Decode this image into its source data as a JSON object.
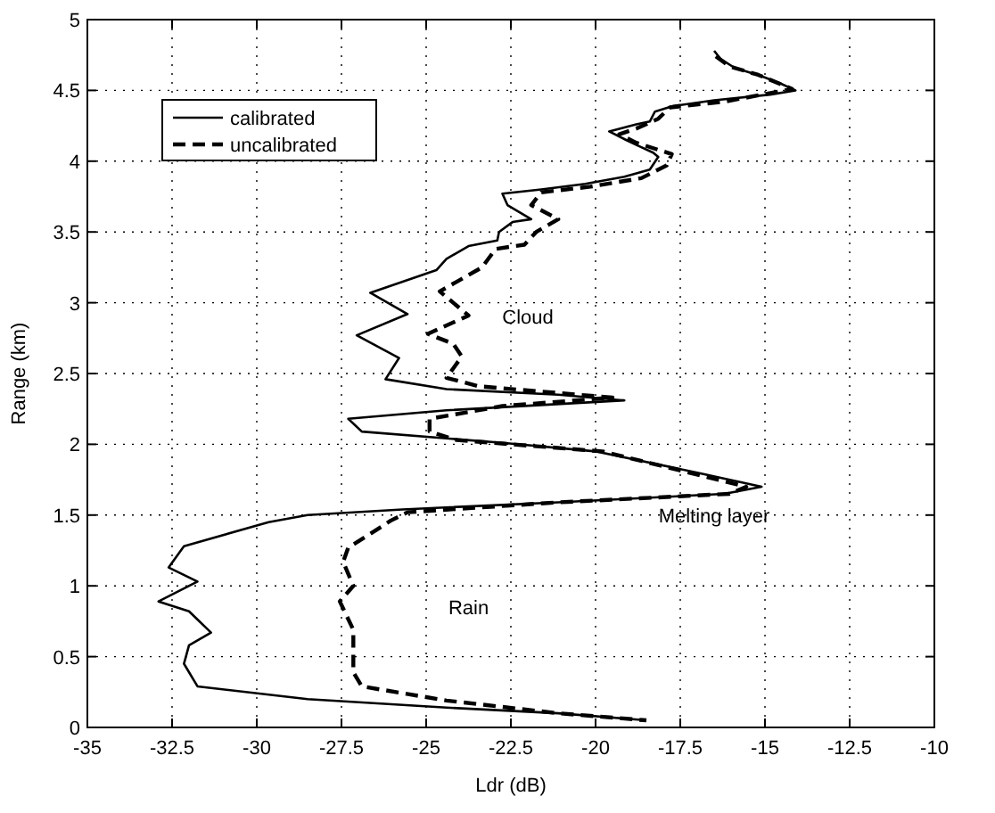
{
  "chart_data": {
    "type": "line",
    "xlabel": "Ldr (dB)",
    "ylabel": "Range (km)",
    "xlim": [
      -35,
      -10
    ],
    "xticks": [
      -35,
      -32.5,
      -30,
      -27.5,
      -25,
      -22.5,
      -20,
      -17.5,
      -15,
      -12.5,
      -10
    ],
    "ylim": [
      0,
      5
    ],
    "yticks": [
      0,
      0.5,
      1,
      1.5,
      2,
      2.5,
      3,
      3.5,
      4,
      4.5,
      5
    ],
    "grid": true,
    "legend": "top left",
    "marker": "none",
    "series": [
      {
        "name": "calibrated",
        "color": "#000000",
        "line_style": "solid",
        "x": [
          -16.5,
          -16.3,
          -15.9,
          -15.1,
          -14.55,
          -14.1,
          -14.85,
          -16.5,
          -17.7,
          -18.25,
          -18.4,
          -18.8,
          -19.6,
          -19.1,
          -18.75,
          -18.3,
          -18.15,
          -18.4,
          -19.15,
          -20.3,
          -21.6,
          -22.75,
          -22.6,
          -21.9,
          -22.45,
          -22.85,
          -22.9,
          -23.75,
          -24.4,
          -24.7,
          -26.65,
          -25.55,
          -27.05,
          -25.8,
          -26.2,
          -24.4,
          -21.1,
          -19.15,
          -24.4,
          -27.3,
          -26.9,
          -22.75,
          -20,
          -17,
          -15.1,
          -16.2,
          -21.1,
          -25.7,
          -28.5,
          -29.65,
          -32.15,
          -32.6,
          -31.75,
          -32.9,
          -32,
          -31.35,
          -32,
          -32.15,
          -31.75,
          -28.5,
          -24.4,
          -21.1,
          -18.5
        ],
        "values": [
          4.78,
          4.72,
          4.66,
          4.6,
          4.55,
          4.5,
          4.47,
          4.43,
          4.39,
          4.35,
          4.28,
          4.26,
          4.21,
          4.15,
          4.11,
          4.06,
          4.03,
          3.94,
          3.89,
          3.84,
          3.8,
          3.77,
          3.69,
          3.59,
          3.57,
          3.5,
          3.44,
          3.4,
          3.31,
          3.23,
          3.07,
          2.92,
          2.77,
          2.61,
          2.46,
          2.39,
          2.35,
          2.31,
          2.24,
          2.18,
          2.09,
          2.01,
          1.95,
          1.8,
          1.7,
          1.65,
          1.59,
          1.54,
          1.5,
          1.45,
          1.28,
          1.13,
          1.03,
          0.89,
          0.82,
          0.67,
          0.58,
          0.45,
          0.29,
          0.2,
          0.14,
          0.1,
          0.05
        ]
      },
      {
        "name": "uncalibrated",
        "color": "#000000",
        "line_style": "dashed",
        "x": [
          -16.45,
          -16.05,
          -15.2,
          -14.2,
          -16.2,
          -17.8,
          -18.15,
          -18.8,
          -19.3,
          -18.8,
          -17.75,
          -17.9,
          -18.65,
          -20.15,
          -21.6,
          -21.9,
          -21.1,
          -21.75,
          -22.1,
          -22.95,
          -23.35,
          -24.6,
          -23.75,
          -24.95,
          -24.2,
          -23.95,
          -24.4,
          -23.45,
          -19.5,
          -22.75,
          -24.9,
          -24.9,
          -24.1,
          -19.8,
          -15.55,
          -16.05,
          -21.1,
          -25.55,
          -26.05,
          -26.7,
          -27.3,
          -27.45,
          -27.15,
          -27.55,
          -27.15,
          -27.15,
          -26.9,
          -24.4,
          -21.1,
          -18.5
        ],
        "values": [
          4.74,
          4.67,
          4.61,
          4.51,
          4.42,
          4.38,
          4.3,
          4.23,
          4.19,
          4.13,
          4.05,
          3.97,
          3.88,
          3.82,
          3.78,
          3.69,
          3.59,
          3.5,
          3.41,
          3.38,
          3.25,
          3.08,
          2.91,
          2.78,
          2.71,
          2.62,
          2.47,
          2.41,
          2.33,
          2.27,
          2.18,
          2.09,
          2.03,
          1.95,
          1.7,
          1.65,
          1.59,
          1.52,
          1.46,
          1.36,
          1.27,
          1.17,
          1,
          0.89,
          0.69,
          0.39,
          0.29,
          0.19,
          0.1,
          0.05
        ]
      }
    ],
    "annotations": [
      "Cloud",
      "Melting layer",
      "Rain"
    ]
  }
}
